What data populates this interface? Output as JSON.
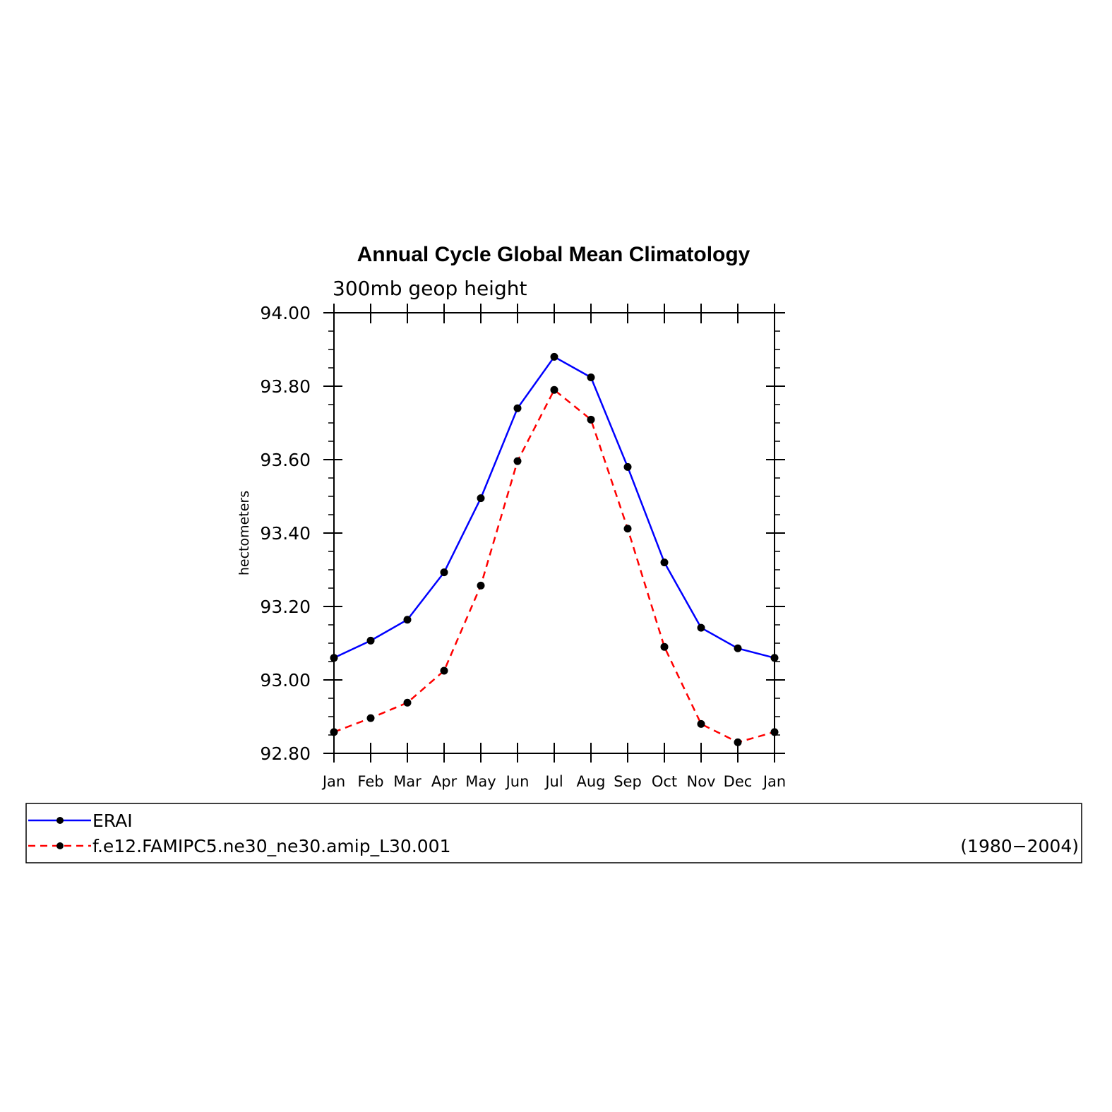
{
  "chart_data": {
    "type": "line",
    "title": "Annual Cycle Global Mean Climatology",
    "subtitle": "300mb geop height",
    "xlabel": "",
    "ylabel": "hectometers",
    "categories": [
      "Jan",
      "Feb",
      "Mar",
      "Apr",
      "May",
      "Jun",
      "Jul",
      "Aug",
      "Sep",
      "Oct",
      "Nov",
      "Dec",
      "Jan"
    ],
    "ylim": [
      92.8,
      94.0
    ],
    "yticks": [
      "92.80",
      "93.00",
      "93.20",
      "93.40",
      "93.60",
      "93.80",
      "94.00"
    ],
    "grid": false,
    "legend_position": "bottom",
    "series": [
      {
        "name": "ERAI",
        "color": "#0000ff",
        "dash": "solid",
        "marker": "circle",
        "values": [
          93.06,
          93.107,
          93.164,
          93.293,
          93.495,
          93.74,
          93.88,
          93.824,
          93.58,
          93.32,
          93.142,
          93.086,
          93.06
        ]
      },
      {
        "name": "f.e12.FAMIPC5.ne30_ne30.amip_L30.001",
        "color": "#ff0000",
        "dash": "dashed",
        "marker": "circle",
        "values": [
          92.858,
          92.896,
          92.938,
          93.025,
          93.257,
          93.596,
          93.79,
          93.709,
          93.412,
          93.09,
          92.88,
          92.83,
          92.858
        ]
      }
    ],
    "legend_annotation": "(1980−2004)"
  }
}
